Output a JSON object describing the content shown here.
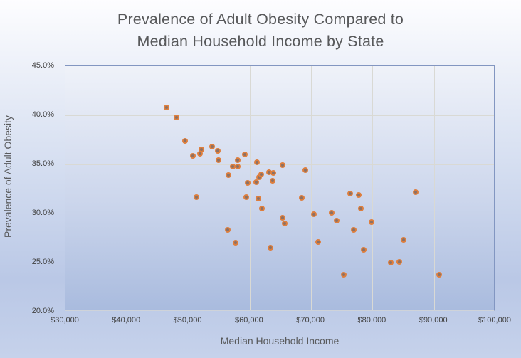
{
  "title": {
    "lines": [
      "Prevalence of Adult Obesity Compared to",
      "Median Household Income by State"
    ]
  },
  "colors": {
    "title_text": "#58595b",
    "axis_text": "#404040",
    "axis_title_text": "#595a5c",
    "gridline": "#d9d9d4",
    "plot_border_blue": "#8296c1",
    "marker_fill": "#8d7164",
    "marker_border": "#de7e3d",
    "background_top": "#fdfdff",
    "background_bottom": "#c6d2eb"
  },
  "chart_data": {
    "type": "scatter",
    "title": "Prevalence of Adult Obesity Compared to Median Household Income by State",
    "xlabel": "Median Household Income",
    "ylabel": "Prevalence of Adult Obesity",
    "xlim": [
      30000,
      100000
    ],
    "ylim": [
      20,
      45
    ],
    "grid": true,
    "legend": false,
    "x_ticks": [
      {
        "value": 30000,
        "label": "$30,000"
      },
      {
        "value": 40000,
        "label": "$40,000"
      },
      {
        "value": 50000,
        "label": "$50,000"
      },
      {
        "value": 60000,
        "label": "$60,000"
      },
      {
        "value": 70000,
        "label": "$70,000"
      },
      {
        "value": 80000,
        "label": "$80,000"
      },
      {
        "value": 90000,
        "label": "$90,000"
      },
      {
        "value": 100000,
        "label": "$100,000"
      }
    ],
    "y_ticks": [
      {
        "value": 20,
        "label": "20.0%"
      },
      {
        "value": 25,
        "label": "25.0%"
      },
      {
        "value": 30,
        "label": "30.0%"
      },
      {
        "value": 35,
        "label": "35.0%"
      },
      {
        "value": 40,
        "label": "40.0%"
      },
      {
        "value": 45,
        "label": "45.0%"
      }
    ],
    "points": [
      {
        "income": 46400,
        "obesity": 40.8
      },
      {
        "income": 48100,
        "obesity": 39.8
      },
      {
        "income": 49500,
        "obesity": 37.4
      },
      {
        "income": 50700,
        "obesity": 35.9
      },
      {
        "income": 51300,
        "obesity": 31.7
      },
      {
        "income": 51900,
        "obesity": 36.1
      },
      {
        "income": 52100,
        "obesity": 36.5
      },
      {
        "income": 53900,
        "obesity": 36.8
      },
      {
        "income": 54800,
        "obesity": 36.4
      },
      {
        "income": 54900,
        "obesity": 35.4
      },
      {
        "income": 56400,
        "obesity": 28.3
      },
      {
        "income": 56500,
        "obesity": 33.9
      },
      {
        "income": 57200,
        "obesity": 34.8
      },
      {
        "income": 57700,
        "obesity": 27.0
      },
      {
        "income": 58000,
        "obesity": 34.8
      },
      {
        "income": 58100,
        "obesity": 35.4
      },
      {
        "income": 59200,
        "obesity": 36.0
      },
      {
        "income": 59400,
        "obesity": 31.7
      },
      {
        "income": 59700,
        "obesity": 33.1
      },
      {
        "income": 61100,
        "obesity": 33.2
      },
      {
        "income": 61200,
        "obesity": 35.2
      },
      {
        "income": 61400,
        "obesity": 31.5
      },
      {
        "income": 61500,
        "obesity": 33.7
      },
      {
        "income": 61900,
        "obesity": 34.0
      },
      {
        "income": 62000,
        "obesity": 30.5
      },
      {
        "income": 63100,
        "obesity": 34.2
      },
      {
        "income": 63400,
        "obesity": 26.5
      },
      {
        "income": 63700,
        "obesity": 33.3
      },
      {
        "income": 63800,
        "obesity": 34.1
      },
      {
        "income": 65300,
        "obesity": 34.9
      },
      {
        "income": 65300,
        "obesity": 29.6
      },
      {
        "income": 65700,
        "obesity": 29.0
      },
      {
        "income": 68500,
        "obesity": 31.6
      },
      {
        "income": 69000,
        "obesity": 34.4
      },
      {
        "income": 70400,
        "obesity": 29.9
      },
      {
        "income": 71100,
        "obesity": 27.1
      },
      {
        "income": 73400,
        "obesity": 30.1
      },
      {
        "income": 74200,
        "obesity": 29.3
      },
      {
        "income": 75300,
        "obesity": 23.8
      },
      {
        "income": 76400,
        "obesity": 32.0
      },
      {
        "income": 76900,
        "obesity": 28.3
      },
      {
        "income": 77800,
        "obesity": 31.9
      },
      {
        "income": 78100,
        "obesity": 30.5
      },
      {
        "income": 78600,
        "obesity": 26.3
      },
      {
        "income": 79800,
        "obesity": 29.1
      },
      {
        "income": 83000,
        "obesity": 25.0
      },
      {
        "income": 84300,
        "obesity": 25.1
      },
      {
        "income": 85100,
        "obesity": 27.3
      },
      {
        "income": 87000,
        "obesity": 32.2
      },
      {
        "income": 90800,
        "obesity": 23.8
      }
    ]
  }
}
